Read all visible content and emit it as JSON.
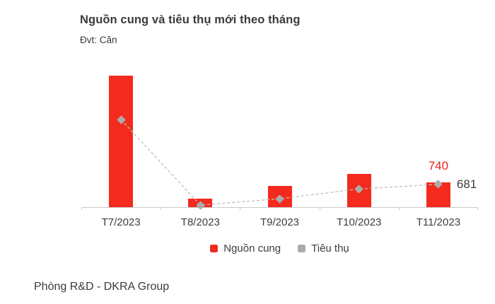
{
  "header": {
    "title": "Nguồn cung và tiêu thụ mới theo tháng",
    "subtitle": "Đvt: Căn"
  },
  "footer": {
    "source": "Phòng R&D - DKRA Group"
  },
  "colors": {
    "supply_red": "#f32a1d",
    "consumption_gray": "#ababab",
    "dashed_line": "#bdbdbd",
    "axis": "#c9c9c9",
    "text": "#3b3b3b",
    "label_red": "#e8251c"
  },
  "chart_data": {
    "type": "bar",
    "title": "Nguồn cung và tiêu thụ mới theo tháng",
    "unit_label": "Đvt: Căn",
    "categories": [
      "T7/2023",
      "T8/2023",
      "T9/2023",
      "T10/2023",
      "T11/2023"
    ],
    "series": [
      {
        "name": "Nguồn cung",
        "type": "bar",
        "color": "#f32a1d",
        "values": [
          3900,
          250,
          630,
          980,
          740
        ]
      },
      {
        "name": "Tiêu thụ",
        "type": "line",
        "color": "#ababab",
        "line_style": "dashed",
        "marker": "diamond",
        "values": [
          2600,
          60,
          250,
          540,
          681
        ]
      }
    ],
    "ylim": [
      0,
      4050
    ],
    "grid": false,
    "legend_position": "bottom",
    "annotations": [
      {
        "text": "740",
        "category_index": 4,
        "series": "Nguồn cung",
        "placement": "above-bar",
        "color": "#e8251c"
      },
      {
        "text": "681",
        "category_index": 4,
        "series": "Tiêu thụ",
        "placement": "right-of-point",
        "color": "#3b3b3b"
      }
    ]
  }
}
